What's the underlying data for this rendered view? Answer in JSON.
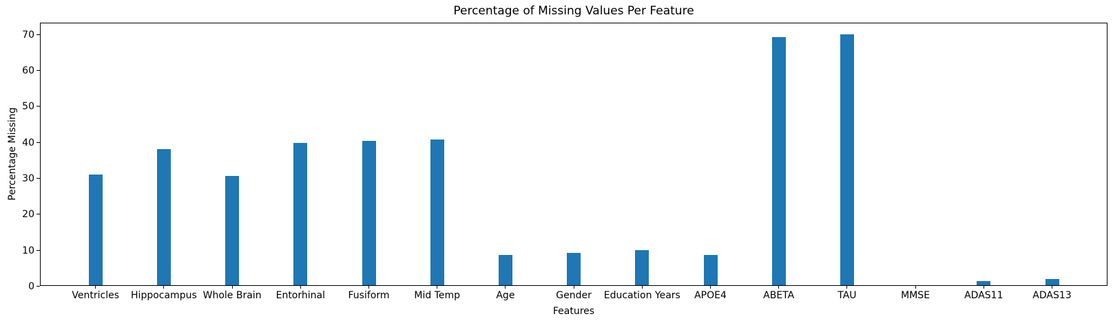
{
  "chart_data": {
    "type": "bar",
    "title": "Percentage of Missing Values Per Feature",
    "xlabel": "Features",
    "ylabel": "Percentage Missing",
    "categories": [
      "Ventricles",
      "Hippocampus",
      "Whole Brain",
      "Entorhinal",
      "Fusiform",
      "Mid Temp",
      "Age",
      "Gender",
      "Education Years",
      "APOE4",
      "ABETA",
      "TAU",
      "MMSE",
      "ADAS11",
      "ADAS13"
    ],
    "values": [
      30.8,
      37.9,
      30.4,
      39.5,
      40.2,
      40.6,
      8.4,
      8.9,
      9.7,
      8.5,
      69.0,
      69.7,
      0.0,
      1.1,
      1.7
    ],
    "ylim": [
      0,
      73.2
    ],
    "yticks": [
      0,
      10,
      20,
      30,
      40,
      50,
      60,
      70
    ],
    "bar_color": "#1f77b4",
    "axis_color": "#000000",
    "text_color": "#000000",
    "background_color": "#ffffff",
    "grid": false,
    "legend": "none"
  }
}
